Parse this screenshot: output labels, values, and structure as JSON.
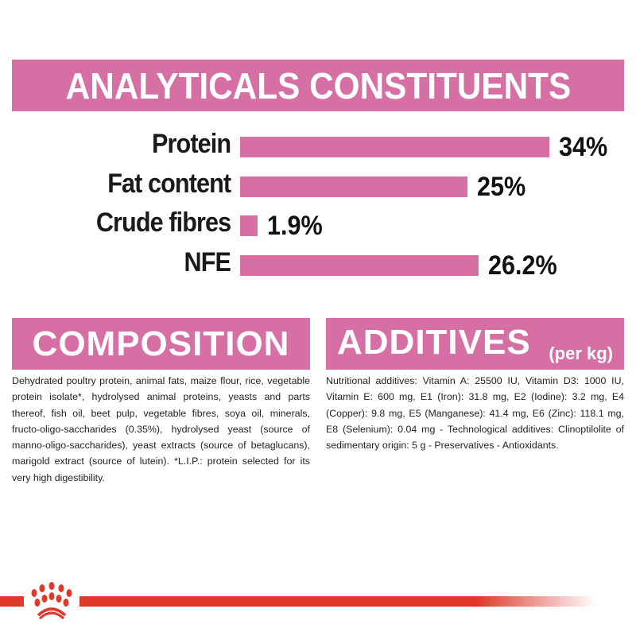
{
  "colors": {
    "accent": "#d670a4",
    "brand_red": "#e0382b"
  },
  "chart_data": {
    "type": "bar",
    "orientation": "horizontal",
    "title": "ANALYTICALS CONSTITUENTS",
    "categories": [
      "Protein",
      "Fat content",
      "Crude fibres",
      "NFE"
    ],
    "values": [
      34,
      25,
      1.9,
      26.2
    ],
    "value_labels": [
      "34%",
      "25%",
      "1.9%",
      "26.2%"
    ],
    "unit": "%",
    "grid": false
  },
  "composition": {
    "heading": "COMPOSITION",
    "text": "Dehydrated poultry protein, animal fats, maize flour, rice, vegetable protein isolate*, hydrolysed animal proteins, yeasts and parts thereof, fish oil, beet pulp, vegetable fibres, soya oil, minerals, fructo-oligo-saccharides (0.35%), hydrolysed yeast (source of manno-oligo-saccharides), yeast extracts (source of betaglucans), marigold extract (source of lutein). *L.I.P.: protein selected for its very high digestibility."
  },
  "additives": {
    "heading": "ADDITIVES",
    "subheading": "(per kg)",
    "text": "Nutritional additives: Vitamin A: 25500 IU, Vitamin D3: 1000 IU, Vitamin E: 600 mg, E1 (Iron): 31.8 mg, E2 (Iodine): 3.2 mg, E4 (Copper): 9.8 mg, E5 (Manganese): 41.4 mg, E6 (Zinc): 118.1 mg, E8 (Selenium): 0.04 mg - Technological additives: Clinoptilolite of sedimentary origin: 5 g - Preservatives - Antioxidants."
  },
  "footer": {
    "logo": "royal-canin-crown"
  }
}
